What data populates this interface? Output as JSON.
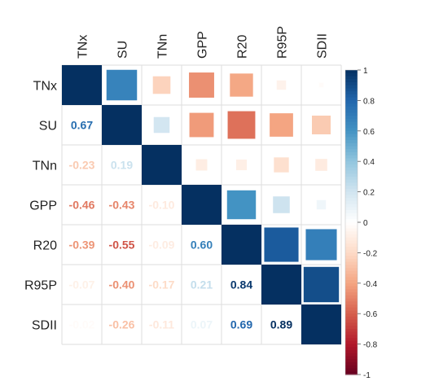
{
  "chart_data": {
    "type": "heatmap",
    "subtype": "correlation-matrix",
    "layout": "mixed: upper triangle squares sized by |r|, lower triangle numeric labels, diagonal full tiles",
    "variables": [
      "TNx",
      "SU",
      "TNn",
      "GPP",
      "R20",
      "R95P",
      "SDII"
    ],
    "matrix": [
      [
        1.0,
        0.67,
        -0.23,
        -0.46,
        -0.39,
        -0.07,
        -0.02
      ],
      [
        0.67,
        1.0,
        0.19,
        -0.43,
        -0.55,
        -0.4,
        -0.26
      ],
      [
        -0.23,
        0.19,
        1.0,
        -0.1,
        -0.09,
        -0.17,
        -0.11
      ],
      [
        -0.46,
        -0.43,
        -0.1,
        1.0,
        0.6,
        0.21,
        0.07
      ],
      [
        -0.39,
        -0.55,
        -0.09,
        0.6,
        1.0,
        0.84,
        0.69
      ],
      [
        -0.07,
        -0.4,
        -0.17,
        0.21,
        0.84,
        1.0,
        0.89
      ],
      [
        -0.02,
        -0.26,
        -0.11,
        0.07,
        0.69,
        0.89,
        1.0
      ]
    ],
    "lower_labels": [
      {
        "row": 1,
        "col": 0,
        "text": "0.67"
      },
      {
        "row": 2,
        "col": 0,
        "text": "-0.23"
      },
      {
        "row": 2,
        "col": 1,
        "text": "0.19"
      },
      {
        "row": 3,
        "col": 0,
        "text": "-0.46"
      },
      {
        "row": 3,
        "col": 1,
        "text": "-0.43"
      },
      {
        "row": 3,
        "col": 2,
        "text": "-0.10"
      },
      {
        "row": 4,
        "col": 0,
        "text": "-0.39"
      },
      {
        "row": 4,
        "col": 1,
        "text": "-0.55"
      },
      {
        "row": 4,
        "col": 2,
        "text": "-0.09"
      },
      {
        "row": 4,
        "col": 3,
        "text": "0.60"
      },
      {
        "row": 5,
        "col": 0,
        "text": "-0.07"
      },
      {
        "row": 5,
        "col": 1,
        "text": "-0.40"
      },
      {
        "row": 5,
        "col": 2,
        "text": "-0.17"
      },
      {
        "row": 5,
        "col": 3,
        "text": "0.21"
      },
      {
        "row": 5,
        "col": 4,
        "text": "0.84"
      },
      {
        "row": 6,
        "col": 0,
        "text": "-0.02"
      },
      {
        "row": 6,
        "col": 1,
        "text": "-0.26"
      },
      {
        "row": 6,
        "col": 2,
        "text": "-0.11"
      },
      {
        "row": 6,
        "col": 3,
        "text": "0.07"
      },
      {
        "row": 6,
        "col": 4,
        "text": "0.69"
      },
      {
        "row": 6,
        "col": 5,
        "text": "0.89"
      }
    ],
    "colorbar": {
      "range": [
        -1,
        1
      ],
      "ticks": [
        "1",
        "0.8",
        "0.6",
        "0.4",
        "0.2",
        "0",
        "-0.2",
        "-0.4",
        "-0.6",
        "-0.8",
        "-1"
      ],
      "position": "right"
    },
    "colors": {
      "negative": "#B2182B",
      "neutral": "#FFFFFF",
      "positive": "#053061",
      "grid": "#DDDDDD",
      "text": "#222222"
    }
  }
}
